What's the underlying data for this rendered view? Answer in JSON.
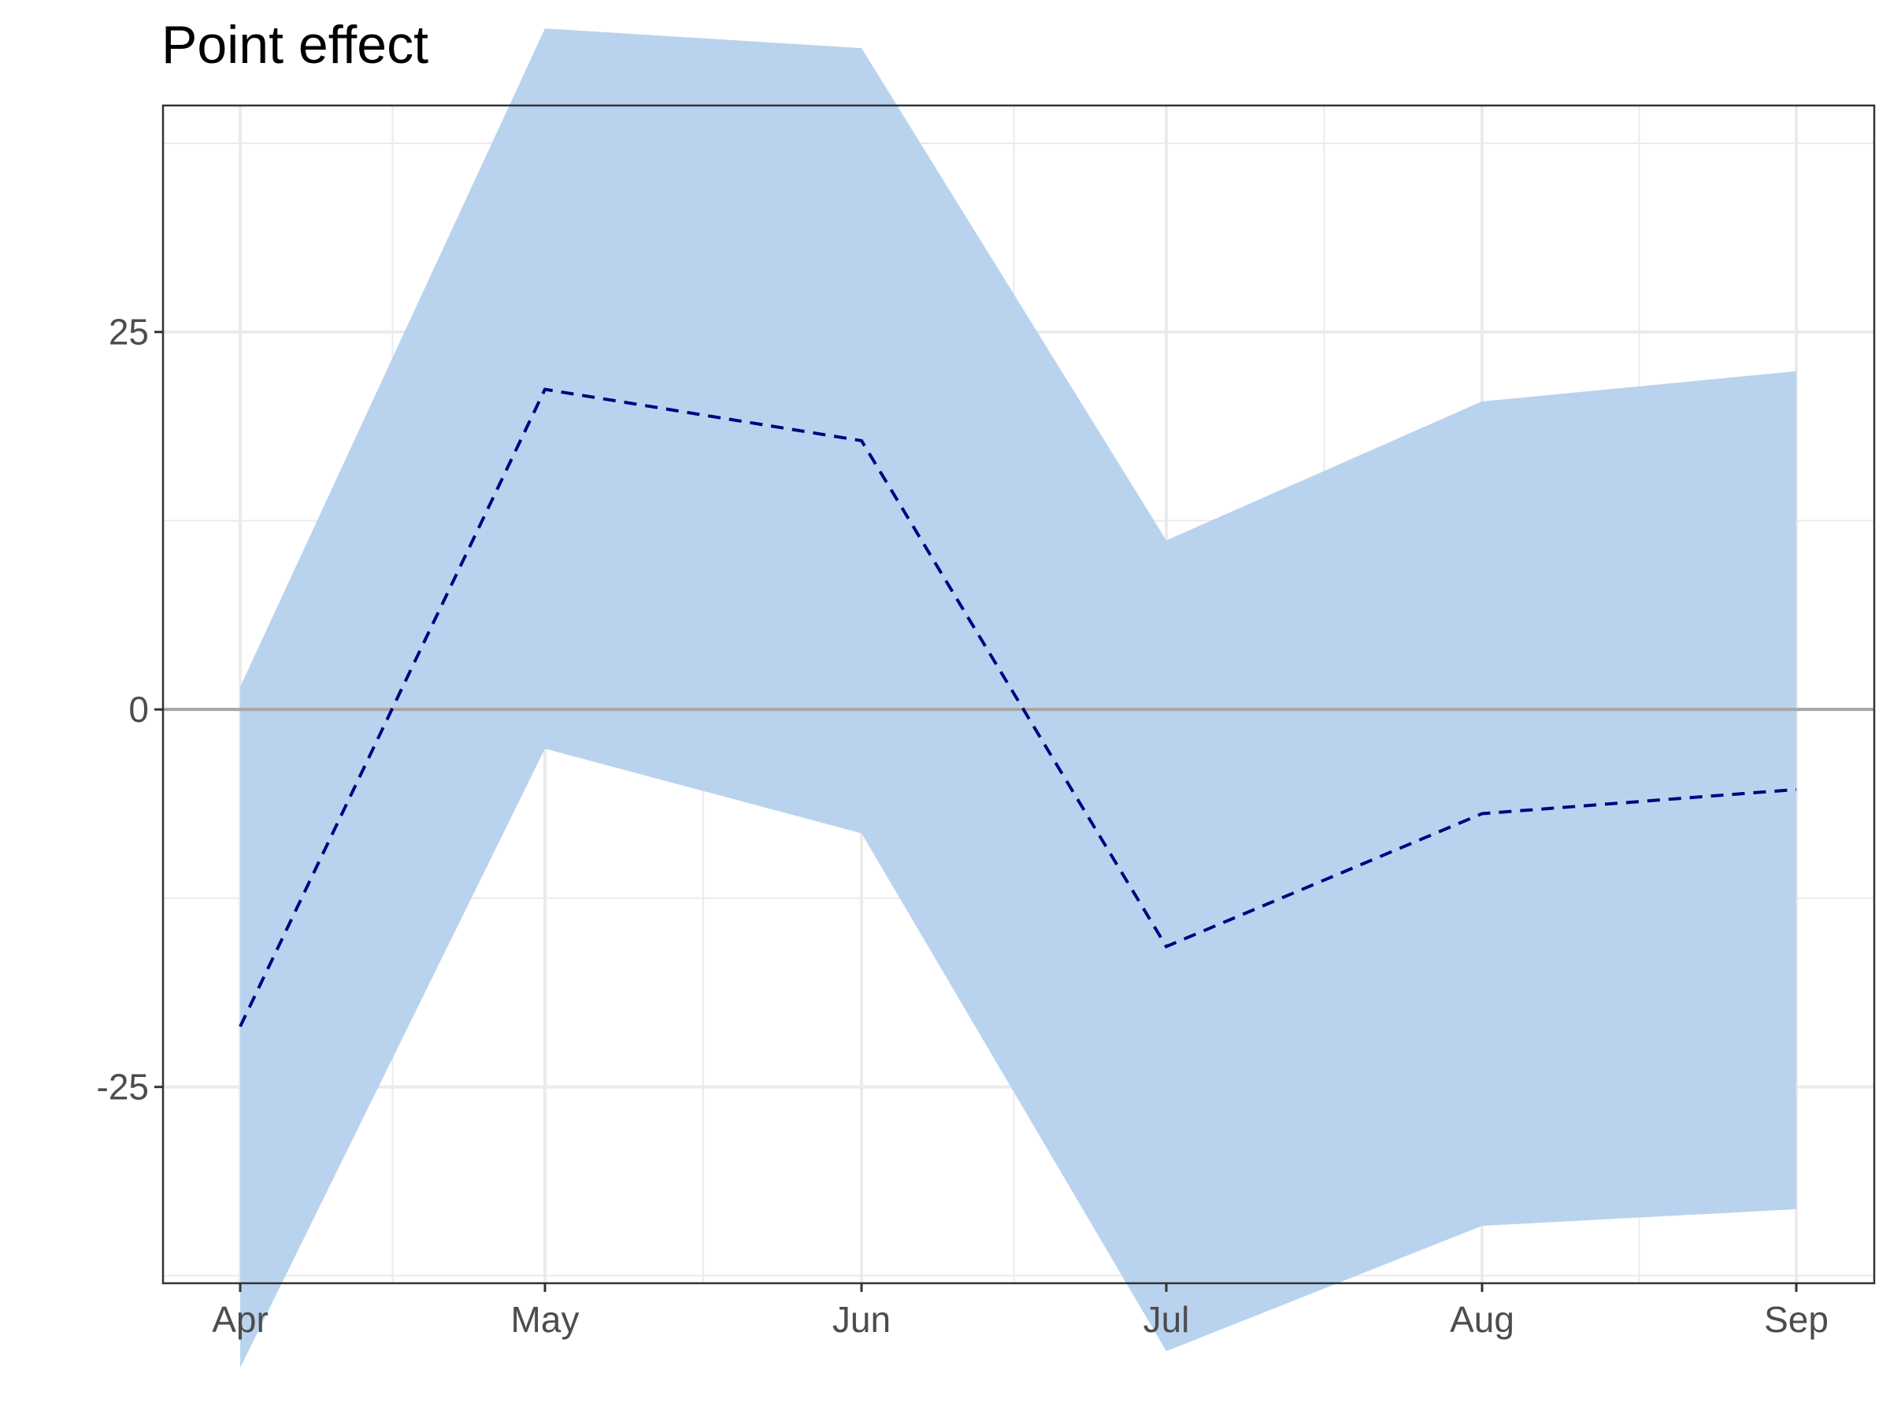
{
  "chart_data": {
    "type": "area",
    "title": "Point effect",
    "xlabel": "",
    "ylabel": "",
    "categories": [
      "Apr",
      "May",
      "Jun",
      "Jul",
      "Aug",
      "Sep"
    ],
    "ylim": [
      -38,
      40
    ],
    "y_ticks": [
      -25,
      0,
      25
    ],
    "y_tick_labels": [
      "-25",
      "0",
      "25"
    ],
    "grid": true,
    "legend": "none",
    "series": [
      {
        "kind": "line",
        "style": "dashed",
        "values": [
          -21,
          21.2,
          17.8,
          -15.7,
          -6.9,
          -5.3
        ]
      },
      {
        "kind": "band",
        "lower": [
          -43.6,
          -2.6,
          -8.2,
          -42.5,
          -34.2,
          -33.1
        ],
        "upper": [
          1.5,
          45.1,
          43.8,
          11.2,
          20.4,
          22.4
        ]
      }
    ],
    "reference_line": 0,
    "colors": {
      "band": "#b9d3ee",
      "line": "#000080",
      "zero_line": "#a6a6a6",
      "grid": "#ebebeb",
      "panel_border": "#333333",
      "tick_text": "#4d4d4d"
    }
  }
}
